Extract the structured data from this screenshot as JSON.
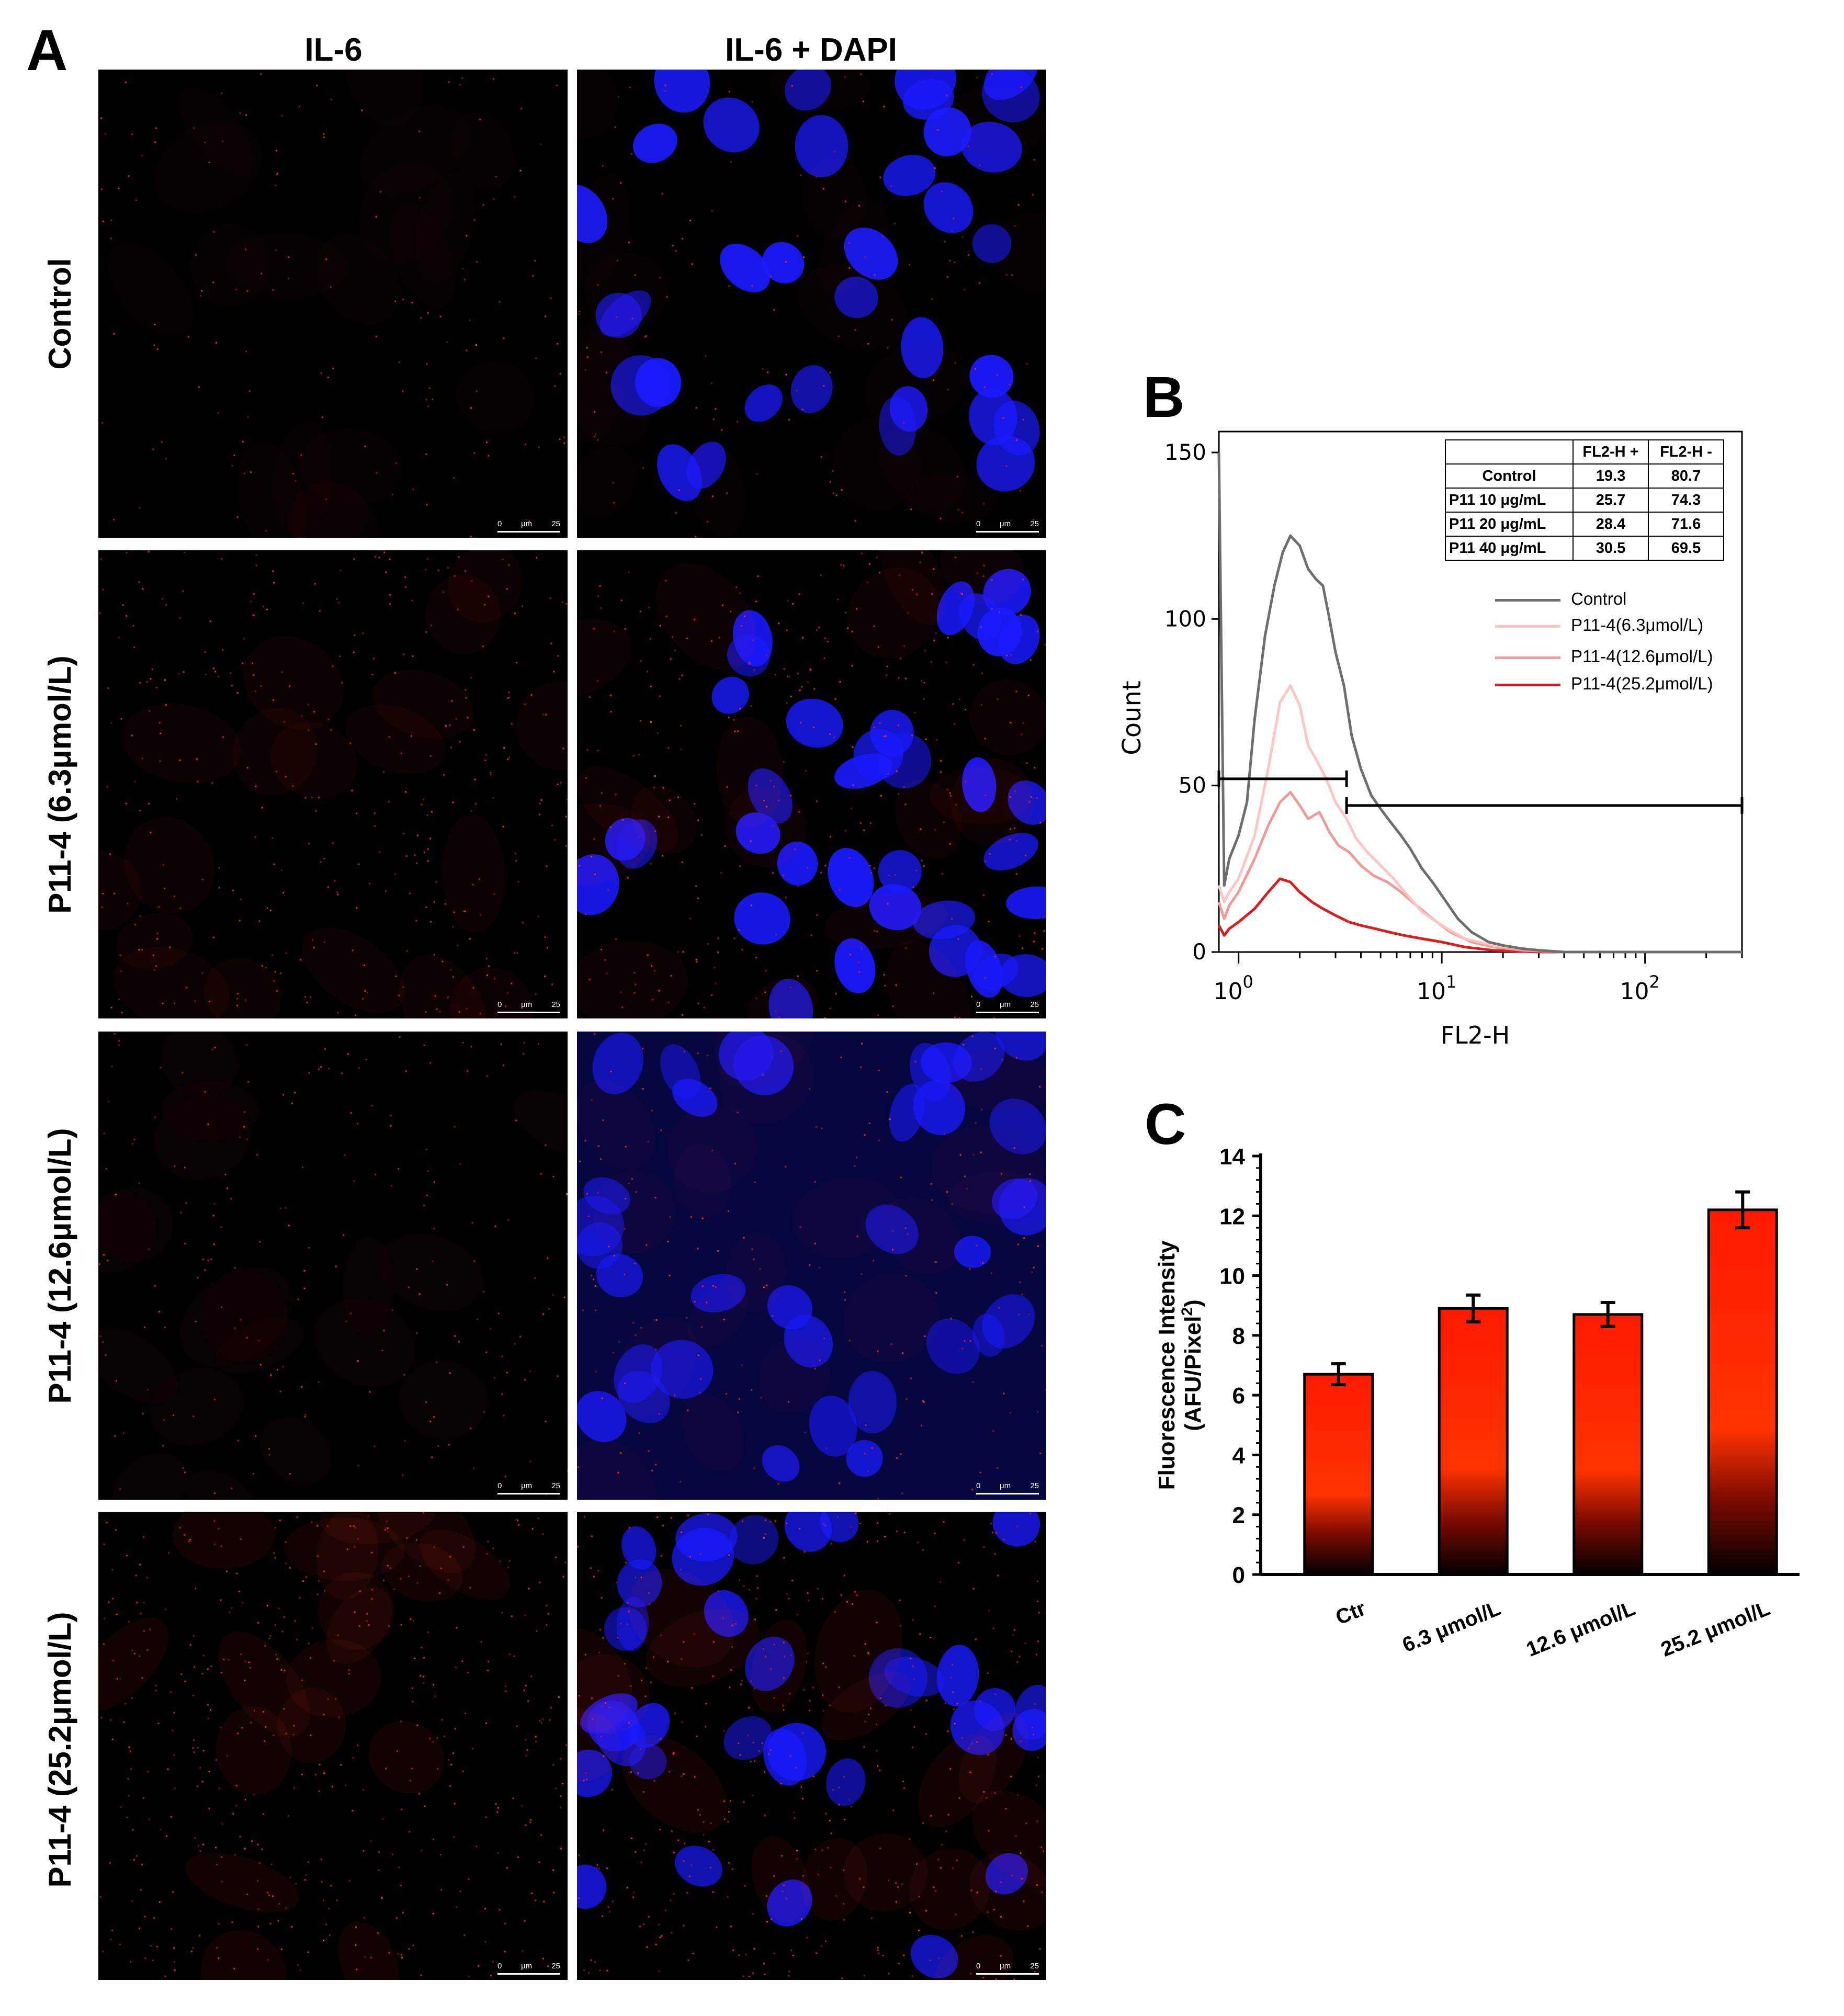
{
  "panel_a": {
    "letter": "A",
    "columns": [
      "IL-6",
      "IL-6 + DAPI"
    ],
    "rows": [
      "Control",
      "P11-4 (6.3μmol/L)",
      "P11-4 (12.6μmol/L)",
      "P11-4 (25.2μmol/L)"
    ],
    "scale_bar": {
      "start": "0",
      "unit": "μm",
      "end": "25"
    },
    "intensity": {
      "il6": [
        0.25,
        0.6,
        0.35,
        0.8
      ],
      "dapi": [
        1.0,
        1.0,
        0.85,
        0.85
      ]
    },
    "colors": {
      "il6": "#ff2a1a",
      "dapi": "#1a1aff",
      "background": "#000000"
    }
  },
  "panel_b": {
    "letter": "B",
    "table": {
      "headers": [
        "",
        "FL2-H +",
        "FL2-H -"
      ],
      "rows": [
        [
          "Control",
          "19.3",
          "80.7"
        ],
        [
          "P11 10 μg/mL",
          "25.7",
          "74.3"
        ],
        [
          "P11 20 μg/mL",
          "28.4",
          "71.6"
        ],
        [
          "P11 40 μg/mL",
          "30.5",
          "69.5"
        ]
      ]
    },
    "legend": [
      {
        "label": "Control",
        "color": "#6e6e6e"
      },
      {
        "label": "P11-4(6.3μmol/L)",
        "color": "#ffc4c4"
      },
      {
        "label": "P11-4(12.6μmol/L)",
        "color": "#f29a9a"
      },
      {
        "label": "P11-4(25.2μmol/L)",
        "color": "#d81e1e"
      }
    ]
  },
  "panel_c": {
    "letter": "C",
    "colors": {
      "top": "#ff1a00",
      "mid": "#ff3300",
      "bottom": "#000000"
    }
  },
  "chart_data": [
    {
      "type": "line",
      "xlabel": "FL2-H",
      "ylabel": "Count",
      "xscale": "log",
      "xlim": [
        0.8,
        300
      ],
      "ylim": [
        0,
        150
      ],
      "yticks": [
        "0",
        "50",
        "100",
        "150"
      ],
      "xticks": [
        {
          "base": "10",
          "exp": "0",
          "value": 1
        },
        {
          "base": "10",
          "exp": "1",
          "value": 10
        },
        {
          "base": "10",
          "exp": "2",
          "value": 100
        }
      ],
      "series": [
        {
          "name": "Control",
          "x": [
            0.8,
            0.85,
            0.9,
            1.0,
            1.1,
            1.2,
            1.35,
            1.5,
            1.65,
            1.8,
            2.0,
            2.2,
            2.4,
            2.6,
            2.8,
            3.0,
            3.3,
            3.6,
            4.0,
            4.5,
            5.0,
            5.6,
            6.3,
            7.0,
            8.0,
            9.0,
            10,
            12,
            14,
            17,
            20,
            25,
            30,
            40,
            60,
            100,
            300
          ],
          "y": [
            150,
            20,
            28,
            35,
            45,
            70,
            95,
            110,
            120,
            125,
            122,
            115,
            112,
            110,
            100,
            90,
            80,
            65,
            55,
            47,
            43,
            39,
            35,
            31,
            25,
            21,
            17,
            10,
            6,
            3,
            2,
            1,
            0.5,
            0,
            0,
            0,
            0
          ]
        },
        {
          "name": "P11-4(6.3μmol/L)",
          "x": [
            0.8,
            0.85,
            0.9,
            1.0,
            1.2,
            1.4,
            1.6,
            1.8,
            2.0,
            2.2,
            2.4,
            2.7,
            3.0,
            3.4,
            3.8,
            4.3,
            5.0,
            5.8,
            6.8,
            8.0,
            10,
            13,
            18,
            25,
            40,
            100,
            300
          ],
          "y": [
            20,
            15,
            18,
            22,
            35,
            55,
            75,
            80,
            74,
            62,
            58,
            52,
            45,
            40,
            34,
            30,
            26,
            22,
            17,
            12,
            8,
            4,
            2,
            1,
            0,
            0,
            0
          ]
        },
        {
          "name": "P11-4(12.6μmol/L)",
          "x": [
            0.8,
            0.85,
            0.9,
            1.0,
            1.2,
            1.4,
            1.6,
            1.8,
            2.0,
            2.2,
            2.5,
            2.8,
            3.1,
            3.5,
            4.0,
            4.6,
            5.4,
            6.3,
            7.5,
            9.0,
            11,
            14,
            18,
            25,
            40,
            100,
            300
          ],
          "y": [
            15,
            10,
            14,
            18,
            28,
            38,
            45,
            48,
            44,
            40,
            42,
            36,
            32,
            30,
            26,
            23,
            21,
            18,
            14,
            10,
            6,
            3,
            1.5,
            0.5,
            0,
            0,
            0
          ]
        },
        {
          "name": "P11-4(25.2μmol/L)",
          "x": [
            0.8,
            0.85,
            0.9,
            1.0,
            1.2,
            1.4,
            1.6,
            1.8,
            2.0,
            2.3,
            2.6,
            3.0,
            3.5,
            4.0,
            4.7,
            5.5,
            6.5,
            8.0,
            10,
            13,
            18,
            30,
            100,
            300
          ],
          "y": [
            8,
            5,
            7,
            9,
            13,
            18,
            22,
            21,
            18,
            15,
            13,
            11,
            9,
            8,
            7,
            6,
            5,
            4,
            3,
            1.5,
            0.5,
            0,
            0,
            0
          ]
        }
      ],
      "gates": [
        {
          "x_start": 0.8,
          "x_end": 3.4,
          "y": 52
        },
        {
          "x_start": 3.4,
          "x_end": 300,
          "y": 44
        }
      ]
    },
    {
      "type": "bar",
      "categories": [
        "Ctr",
        "6.3 μmol/L",
        "12.6 μmol/L",
        "25.2 μmol/L"
      ],
      "values": [
        6.7,
        8.9,
        8.7,
        12.2
      ],
      "errors": [
        0.35,
        0.45,
        0.4,
        0.6
      ],
      "ylabel_line1": "Fluorescence Intensity",
      "ylabel_line2_prefix": "(AFU/Pixel",
      "ylabel_sup": "2",
      "ylabel_line2_suffix": ")",
      "ylim": [
        0,
        14
      ],
      "yticks": [
        "0",
        "2",
        "4",
        "6",
        "8",
        "10",
        "12",
        "14"
      ]
    }
  ]
}
